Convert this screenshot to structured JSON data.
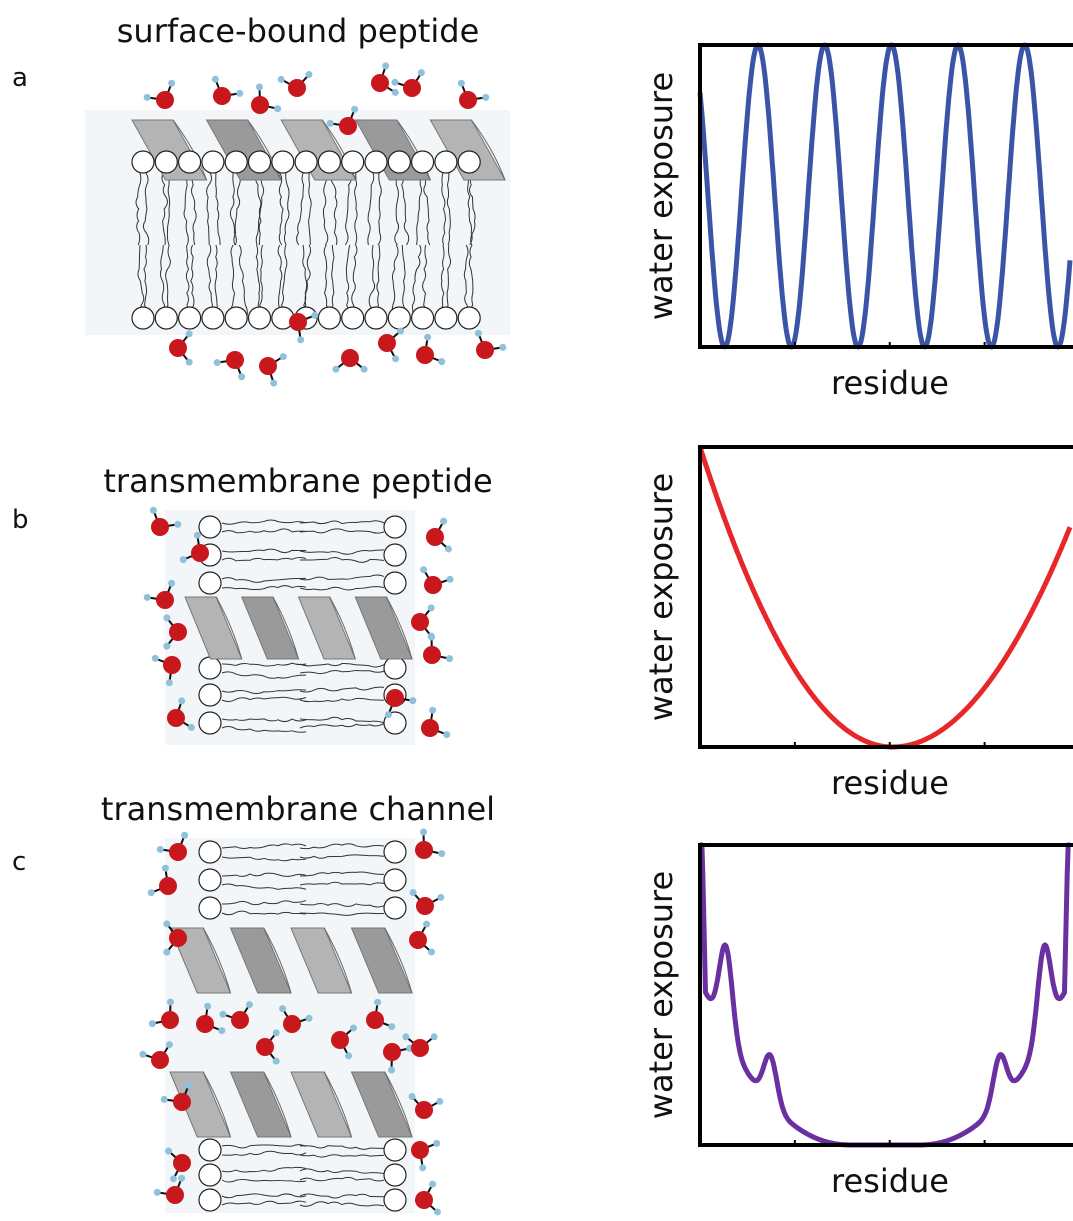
{
  "panels": [
    {
      "label": "a",
      "title": "surface-bound peptide",
      "y_label": "water exposure",
      "x_label": "residue"
    },
    {
      "label": "b",
      "title": "transmembrane peptide",
      "y_label": "water exposure",
      "x_label": "residue"
    },
    {
      "label": "c",
      "title": "transmembrane channel",
      "y_label": "water exposure",
      "x_label": "residue"
    }
  ]
}
